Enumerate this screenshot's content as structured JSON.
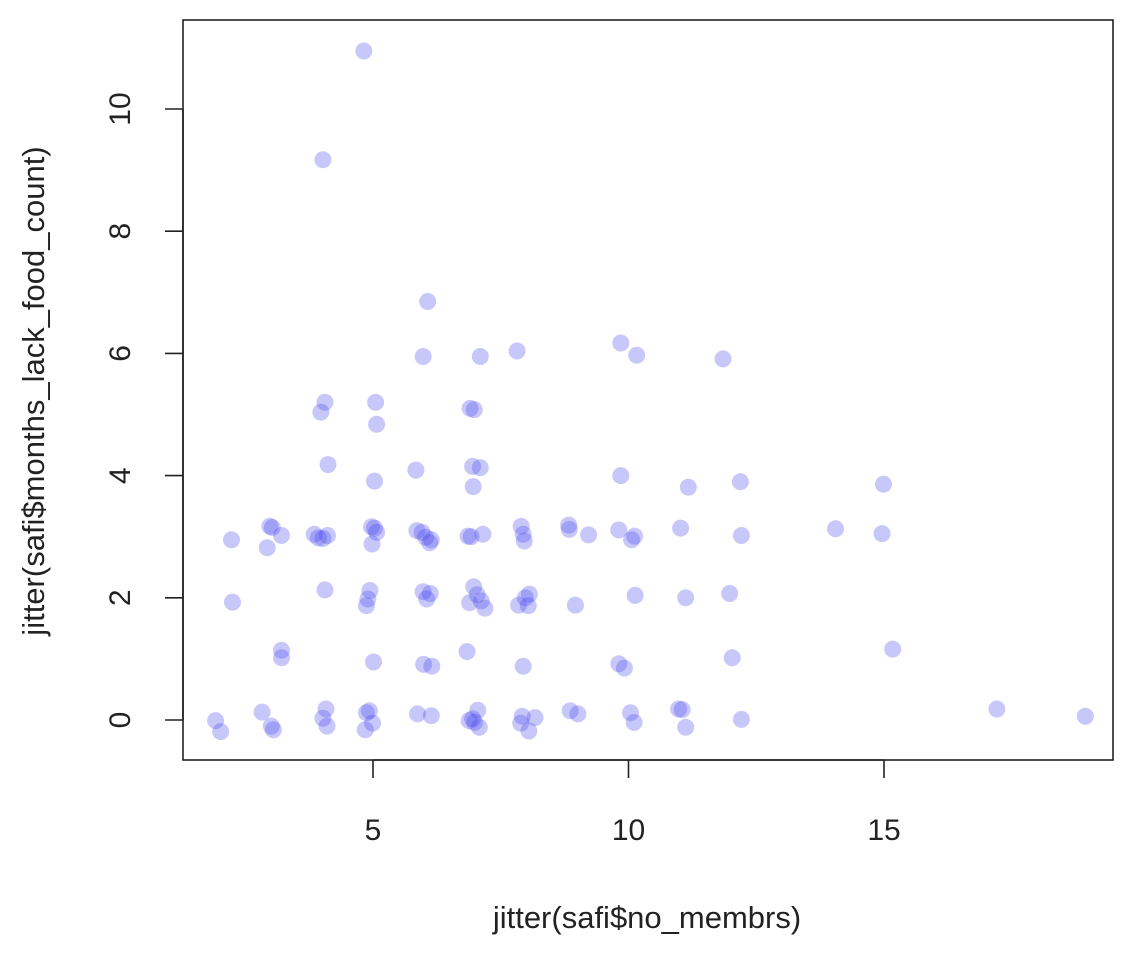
{
  "chart_data": {
    "type": "scatter",
    "xlabel": "jitter(safi$no_membrs)",
    "ylabel": "jitter(safi$months_lack_food_count)",
    "x_ticks": [
      5,
      10,
      15
    ],
    "y_ticks": [
      0,
      2,
      4,
      6,
      8,
      10
    ],
    "xlim": [
      1.2,
      19.5
    ],
    "ylim": [
      -0.6,
      11.5
    ],
    "grid": false,
    "legend": "none",
    "point_color": "#4444ee",
    "x": [
      4.82,
      4.02,
      6.07,
      5.98,
      7.1,
      7.82,
      9.85,
      10.16,
      11.85,
      4.06,
      3.98,
      5.05,
      6.9,
      6.98,
      5.07,
      4.12,
      6.95,
      7.1,
      5.84,
      9.85,
      5.03,
      6.96,
      11.17,
      12.19,
      14.99,
      2.23,
      2.98,
      3.03,
      3.21,
      2.93,
      3.85,
      3.93,
      4.02,
      4.11,
      4.97,
      5.03,
      5.07,
      4.98,
      5.86,
      5.96,
      6.03,
      6.11,
      6.14,
      6.86,
      6.92,
      7.15,
      7.9,
      7.94,
      7.96,
      8.83,
      8.84,
      9.22,
      9.81,
      10.12,
      10.06,
      11.02,
      12.21,
      14.05,
      14.96,
      2.25,
      4.06,
      4.94,
      4.9,
      4.87,
      5.98,
      6.05,
      6.12,
      6.89,
      6.97,
      7.04,
      7.12,
      7.19,
      7.85,
      7.98,
      8.04,
      8.06,
      8.96,
      10.13,
      11.12,
      11.98,
      3.21,
      3.21,
      5.01,
      5.99,
      6.15,
      6.84,
      7.94,
      9.81,
      9.92,
      12.03,
      15.17,
      1.92,
      2.02,
      2.83,
      3.01,
      3.05,
      4.02,
      4.08,
      4.1,
      4.87,
      4.93,
      4.99,
      4.85,
      5.87,
      6.14,
      6.88,
      6.95,
      7.05,
      6.99,
      7.08,
      7.92,
      7.89,
      8.05,
      8.17,
      8.86,
      9.01,
      10.04,
      10.11,
      10.98,
      11.05,
      11.12,
      12.21,
      17.21,
      18.94
    ],
    "y": [
      10.95,
      9.17,
      6.85,
      5.95,
      5.95,
      6.04,
      6.17,
      5.97,
      5.91,
      5.2,
      5.04,
      5.2,
      5.1,
      5.08,
      4.84,
      4.18,
      4.15,
      4.13,
      4.09,
      4.0,
      3.91,
      3.82,
      3.81,
      3.9,
      3.86,
      2.95,
      3.17,
      3.15,
      3.02,
      2.82,
      3.04,
      2.98,
      2.97,
      3.02,
      3.16,
      3.14,
      3.07,
      2.88,
      3.1,
      3.07,
      2.99,
      2.9,
      2.95,
      3.01,
      3.0,
      3.04,
      3.17,
      3.04,
      2.93,
      3.19,
      3.12,
      3.03,
      3.11,
      3.01,
      2.95,
      3.14,
      3.02,
      3.13,
      3.05,
      1.93,
      2.13,
      2.12,
      1.98,
      1.87,
      2.1,
      1.98,
      2.07,
      1.92,
      2.18,
      2.05,
      1.95,
      1.83,
      1.88,
      2.0,
      1.87,
      2.06,
      1.88,
      2.04,
      2.0,
      2.07,
      1.14,
      1.02,
      0.95,
      0.91,
      0.88,
      1.12,
      0.88,
      0.92,
      0.85,
      1.02,
      1.16,
      -0.01,
      -0.19,
      0.13,
      -0.1,
      -0.16,
      0.03,
      0.18,
      -0.1,
      0.12,
      0.15,
      -0.05,
      -0.16,
      0.1,
      0.07,
      -0.01,
      0.02,
      0.16,
      -0.04,
      -0.12,
      0.06,
      -0.05,
      -0.18,
      0.04,
      0.15,
      0.1,
      0.12,
      -0.04,
      0.18,
      0.17,
      -0.12,
      0.01,
      0.18,
      0.06
    ]
  }
}
